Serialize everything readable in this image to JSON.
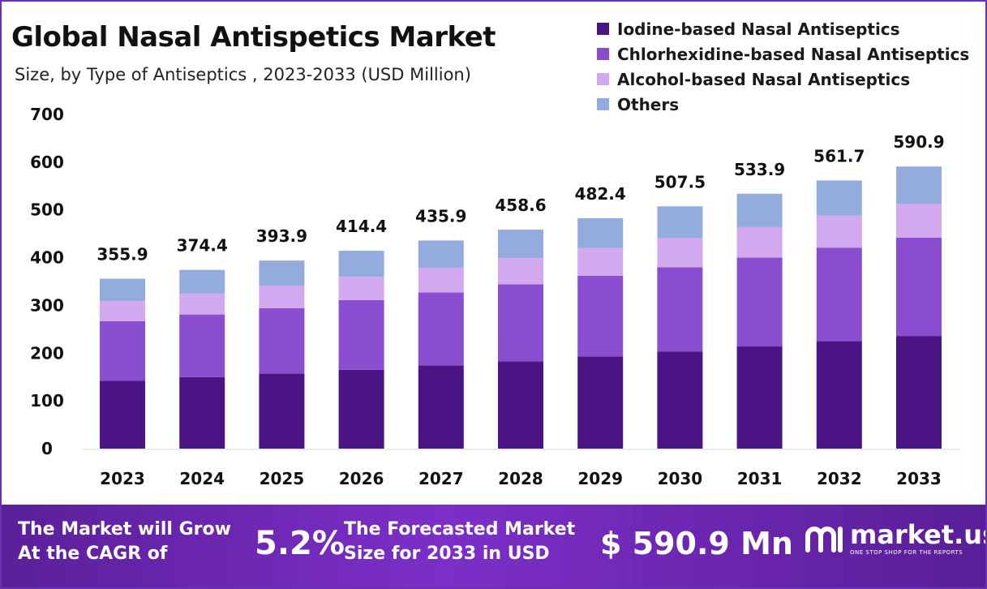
{
  "header": {
    "title": "Global Nasal Antispetics Market",
    "subtitle": "Size, by Type of Antiseptics , 2023-2033 (USD Million)"
  },
  "chart_data": {
    "type": "bar",
    "stacked": true,
    "categories": [
      "2023",
      "2024",
      "2025",
      "2026",
      "2027",
      "2028",
      "2029",
      "2030",
      "2031",
      "2032",
      "2033"
    ],
    "series": [
      {
        "name": "Iodine-based Nasal Antiseptics",
        "color": "#4b1485",
        "values": [
          142,
          150,
          157,
          165,
          174,
          183,
          193,
          203,
          214,
          225,
          236
        ]
      },
      {
        "name": "Chlorhexidine-based Nasal Antiseptics",
        "color": "#8a4dcf",
        "values": [
          125,
          131,
          137,
          146,
          153,
          161,
          169,
          177,
          186,
          196,
          206
        ]
      },
      {
        "name": "Alcohol-based Nasal Antiseptics",
        "color": "#d2a8ee",
        "values": [
          42,
          44,
          47,
          49,
          52,
          55,
          58,
          61,
          64,
          67,
          71
        ]
      },
      {
        "name": "Others",
        "color": "#93acdd",
        "values": [
          46.9,
          49.4,
          52.9,
          54.4,
          56.9,
          59.6,
          62.4,
          66.5,
          69.9,
          73.7,
          77.9
        ]
      }
    ],
    "totals": [
      "355.9",
      "374.4",
      "393.9",
      "414.4",
      "435.9",
      "458.6",
      "482.4",
      "507.5",
      "533.9",
      "561.7",
      "590.9"
    ],
    "ylim": [
      0,
      700
    ],
    "yticks": [
      "0",
      "100",
      "200",
      "300",
      "400",
      "500",
      "600",
      "700"
    ],
    "grid": false,
    "legend_position": "top-right"
  },
  "footer": {
    "cagr_label": "The Market will Grow At the CAGR of",
    "cagr_value": "5.2%",
    "forecast_label": "The Forecasted Market Size for 2033 in USD",
    "forecast_value": "$ 590.9 Mn",
    "brand_name": "market.us",
    "brand_tagline": "ONE STOP SHOP FOR THE REPORTS"
  }
}
